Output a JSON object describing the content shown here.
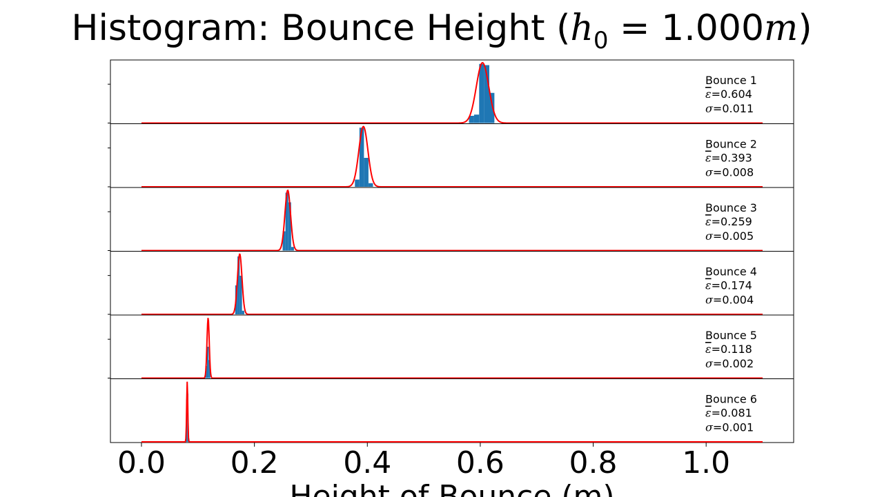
{
  "chart_data": {
    "type": "histogram",
    "title": {
      "prefix": "Histogram: Bounce Height (",
      "h": "h",
      "sub": "0",
      "eq": " = 1.000",
      "m": "m",
      "suffix": ")"
    },
    "xlabel": "Height of Bounce (m)",
    "xlim": [
      -0.055,
      1.155
    ],
    "xticks": [
      "0.0",
      "0.2",
      "0.4",
      "0.6",
      "0.8",
      "1.0"
    ],
    "xtick_values": [
      0.0,
      0.2,
      0.4,
      0.6,
      0.8,
      1.0
    ],
    "fit_range": [
      0.0,
      1.1
    ],
    "bar_color": "#1f77b4",
    "fit_color": "#ff0000",
    "panels": [
      {
        "name": "Bounce 1",
        "label": "Bounce 1",
        "eps_text": "=0.604",
        "sigma_text": "=0.011",
        "mean": 0.604,
        "std": 0.011,
        "bins": [
          [
            0.58,
            0.589,
            0.12
          ],
          [
            0.589,
            0.598,
            0.14
          ],
          [
            0.598,
            0.607,
            0.98
          ],
          [
            0.607,
            0.616,
            0.96
          ],
          [
            0.616,
            0.625,
            0.5
          ]
        ]
      },
      {
        "name": "Bounce 2",
        "label": "Bounce 2",
        "eps_text": "=0.393",
        "sigma_text": "=0.008",
        "mean": 0.393,
        "std": 0.008,
        "bins": [
          [
            0.378,
            0.386,
            0.12
          ],
          [
            0.386,
            0.394,
            0.98
          ],
          [
            0.394,
            0.402,
            0.48
          ],
          [
            0.402,
            0.41,
            0.06
          ]
        ]
      },
      {
        "name": "Bounce 3",
        "label": "Bounce 3",
        "eps_text": "=0.259",
        "sigma_text": "=0.005",
        "mean": 0.259,
        "std": 0.005,
        "bins": [
          [
            0.25,
            0.255,
            0.32
          ],
          [
            0.255,
            0.26,
            0.96
          ],
          [
            0.26,
            0.265,
            0.8
          ],
          [
            0.265,
            0.27,
            0.06
          ]
        ]
      },
      {
        "name": "Bounce 4",
        "label": "Bounce 4",
        "eps_text": "=0.174",
        "sigma_text": "=0.004",
        "mean": 0.174,
        "std": 0.004,
        "bins": [
          [
            0.166,
            0.17,
            0.48
          ],
          [
            0.17,
            0.174,
            0.96
          ],
          [
            0.174,
            0.178,
            0.64
          ],
          [
            0.178,
            0.182,
            0.06
          ]
        ]
      },
      {
        "name": "Bounce 5",
        "label": "Bounce 5",
        "eps_text": "=0.118",
        "sigma_text": "=0.002",
        "mean": 0.118,
        "std": 0.002,
        "bins": [
          [
            0.113,
            0.116,
            0.2
          ],
          [
            0.116,
            0.119,
            0.52
          ],
          [
            0.119,
            0.122,
            0.3
          ]
        ]
      },
      {
        "name": "Bounce 6",
        "label": "Bounce 6",
        "eps_text": "=0.081",
        "sigma_text": "=0.001",
        "mean": 0.081,
        "std": 0.001,
        "bins": [
          [
            0.079,
            0.081,
            0.7
          ],
          [
            0.081,
            0.083,
            0.8
          ]
        ]
      }
    ]
  }
}
